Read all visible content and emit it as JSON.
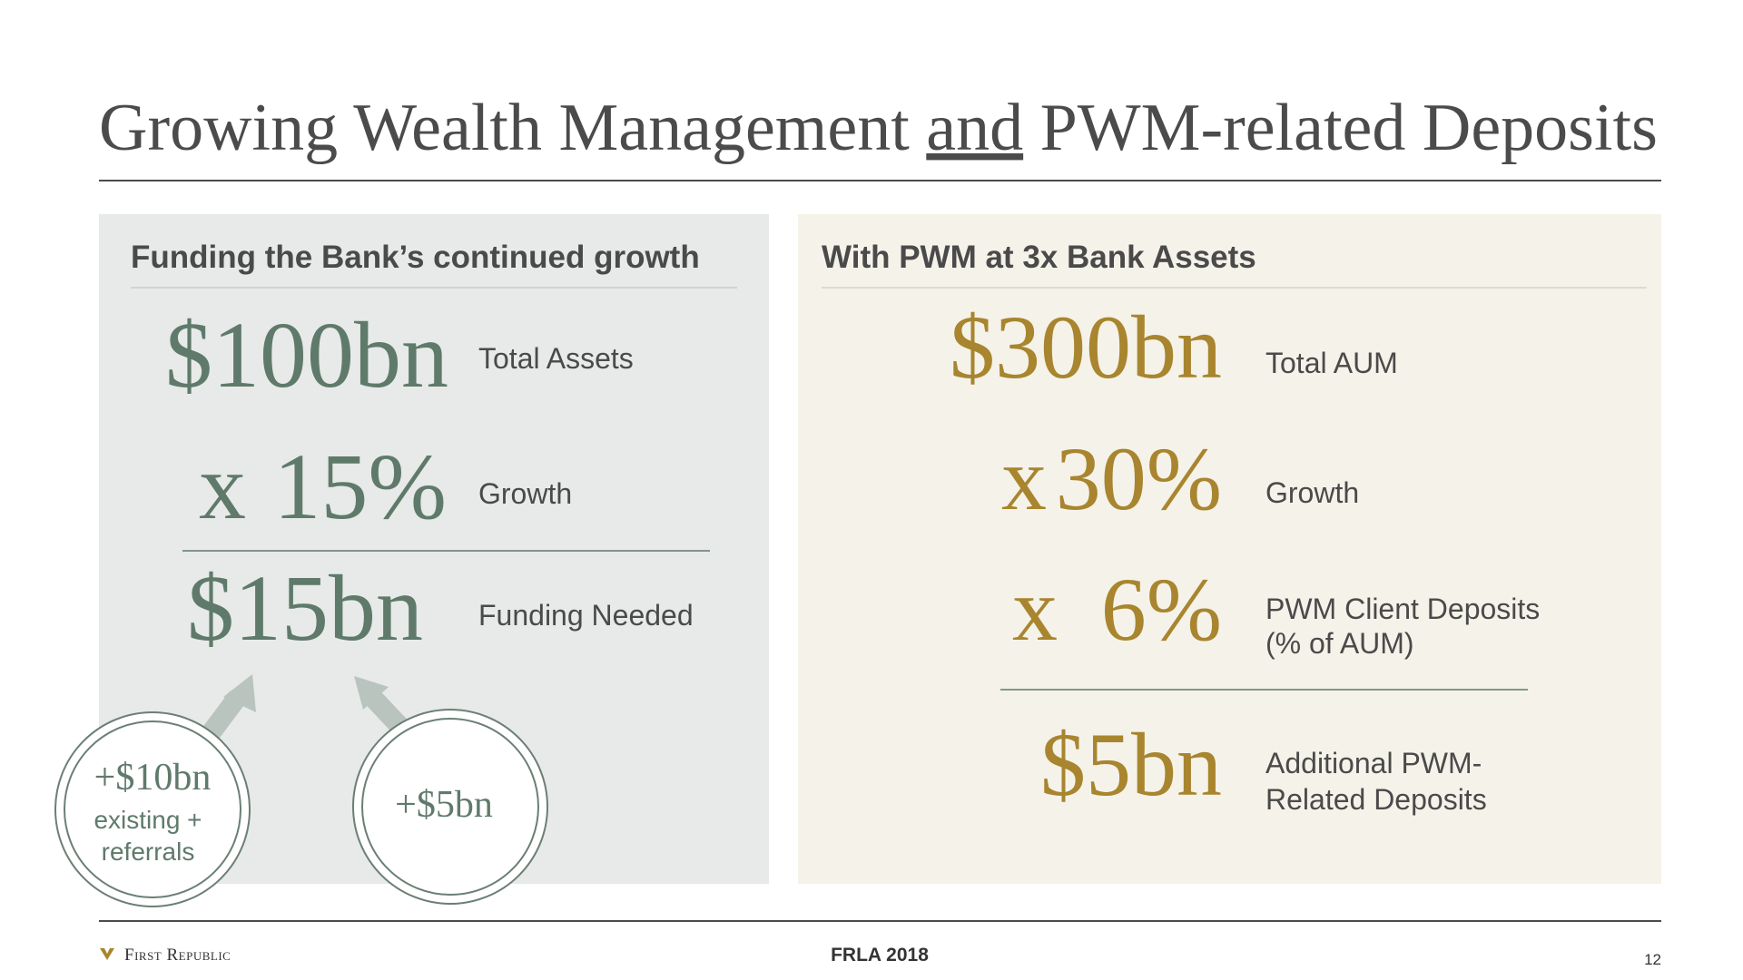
{
  "header": {
    "title_parts": [
      "Growing Wealth Management ",
      "and",
      " PWM-related Deposits"
    ]
  },
  "left_panel": {
    "heading": "Funding the Bank’s continued growth",
    "rows": [
      {
        "operator": null,
        "value": "$100bn",
        "label": "Total Assets"
      },
      {
        "operator": "x",
        "value": "15%",
        "label": "Growth"
      },
      {
        "operator": null,
        "value": "$15bn",
        "label": "Funding Needed"
      }
    ],
    "sources": [
      {
        "value": "+$10bn",
        "note_lines": [
          "existing +",
          "referrals"
        ]
      },
      {
        "value": "+$5bn"
      }
    ]
  },
  "right_panel": {
    "heading": "With PWM at 3x Bank Assets",
    "rows": [
      {
        "operator": null,
        "value": "$300bn",
        "label_lines": [
          "Total AUM"
        ]
      },
      {
        "operator": "x",
        "value": "30%",
        "label_lines": [
          "Growth"
        ]
      },
      {
        "operator": "x",
        "value": "6%",
        "label_lines": [
          "PWM Client Deposits",
          "(% of AUM)"
        ]
      },
      {
        "operator": null,
        "value": "$5bn",
        "label_lines": [
          "Additional PWM-",
          "Related Deposits"
        ]
      }
    ]
  },
  "footer": {
    "logo": "First Republic",
    "event": "FRLA 2018",
    "page": "12"
  }
}
